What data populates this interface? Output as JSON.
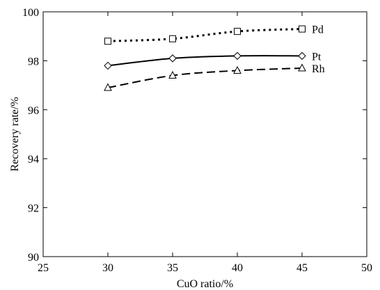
{
  "chart_data": {
    "type": "line",
    "xlabel": "CuO ratio/%",
    "ylabel": "Recovery rate/%",
    "xlim": [
      25,
      50
    ],
    "ylim": [
      90,
      100
    ],
    "xticks": [
      25,
      30,
      35,
      40,
      45,
      50
    ],
    "yticks": [
      90,
      92,
      94,
      96,
      98,
      100
    ],
    "grid": false,
    "series": [
      {
        "name": "Pd",
        "marker": "square",
        "line_style": "dotted",
        "x": [
          30,
          35,
          40,
          45
        ],
        "values": [
          98.8,
          98.9,
          99.2,
          99.3
        ]
      },
      {
        "name": "Pt",
        "marker": "diamond",
        "line_style": "solid",
        "x": [
          30,
          35,
          40,
          45
        ],
        "values": [
          97.8,
          98.1,
          98.2,
          98.2
        ]
      },
      {
        "name": "Rh",
        "marker": "triangle",
        "line_style": "dashed",
        "x": [
          30,
          35,
          40,
          45
        ],
        "values": [
          96.9,
          97.4,
          97.6,
          97.7
        ]
      }
    ]
  }
}
